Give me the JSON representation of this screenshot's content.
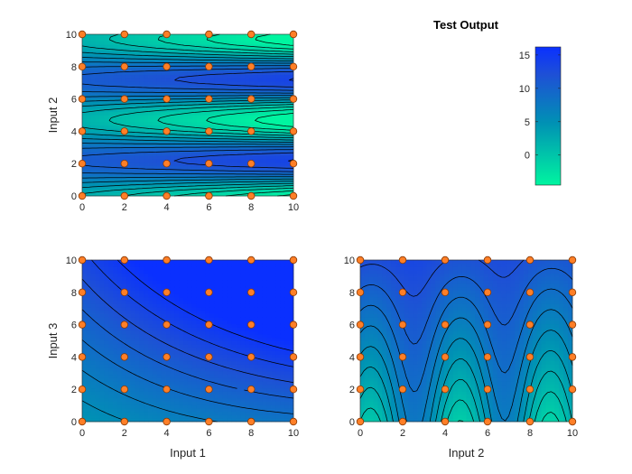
{
  "chart_data": [
    {
      "type": "heatmap",
      "panel": "top-left",
      "title": "",
      "xlabel": "",
      "ylabel": "Input 2",
      "xlim": [
        0,
        10
      ],
      "ylim": [
        0,
        10
      ],
      "xticks": [
        "0",
        "2",
        "4",
        "6",
        "8",
        "10"
      ],
      "yticks": [
        "0",
        "2",
        "4",
        "6",
        "8",
        "10"
      ],
      "surface": "contour plot of Test Output over Input 1 (x) and Input 2 (y); lowest values near y=4.7 right side, highest near y=1.5 and y=8 right side",
      "sample_points": {
        "x": [
          0,
          2,
          4,
          6,
          8,
          10
        ],
        "y": [
          0,
          2,
          4,
          6,
          8,
          10
        ]
      }
    },
    {
      "type": "heatmap",
      "panel": "bottom-left",
      "title": "",
      "xlabel": "Input 1",
      "ylabel": "Input 3",
      "xlim": [
        0,
        10
      ],
      "ylim": [
        0,
        10
      ],
      "xticks": [
        "0",
        "2",
        "4",
        "6",
        "8",
        "10"
      ],
      "yticks": [
        "0",
        "2",
        "4",
        "6",
        "8",
        "10"
      ],
      "surface": "contour plot of Test Output over Input 1 (x) and Input 3 (y); increasing toward top-right",
      "sample_points": {
        "x": [
          0,
          2,
          4,
          6,
          8,
          10
        ],
        "y": [
          0,
          2,
          4,
          6,
          8,
          10
        ]
      }
    },
    {
      "type": "heatmap",
      "panel": "bottom-right",
      "title": "",
      "xlabel": "Input 2",
      "ylabel": "",
      "xlim": [
        0,
        10
      ],
      "ylim": [
        0,
        10
      ],
      "xticks": [
        "0",
        "2",
        "4",
        "6",
        "8",
        "10"
      ],
      "yticks": [
        "0",
        "2",
        "4",
        "6",
        "8",
        "10"
      ],
      "surface": "contour plot of Test Output over Input 2 (x) and Input 3 (y); wavy along Input 2, low near x=4.7 bottom",
      "sample_points": {
        "x": [
          0,
          2,
          4,
          6,
          8,
          10
        ],
        "y": [
          0,
          2,
          4,
          6,
          8,
          10
        ]
      }
    }
  ],
  "colorbar": {
    "title": "Test Output",
    "range": [
      -4.5,
      16.2
    ],
    "ticks": [
      "0",
      "5",
      "10",
      "15"
    ],
    "colormap": [
      "#00f5a0",
      "#0091b4",
      "#1e50d6",
      "#0a30ff"
    ]
  },
  "colors": {
    "low": "#00f5a0",
    "mid": "#0091b4",
    "high": "#0a30ff",
    "point_fill": "#ff7f27"
  }
}
